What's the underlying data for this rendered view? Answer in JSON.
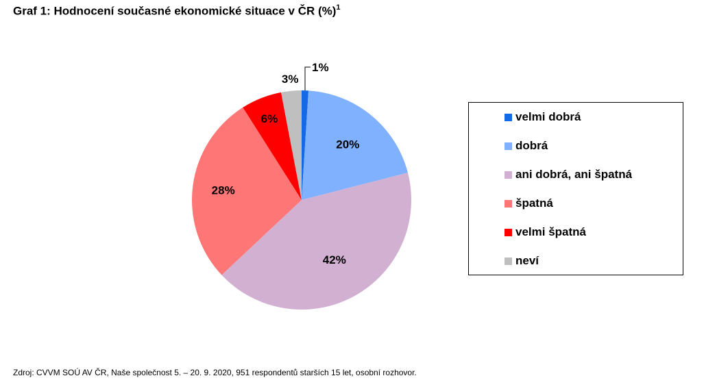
{
  "title": "Graf 1: Hodnocení současné ekonomické situace v ČR (%)",
  "title_footnote": "1",
  "source": "Zdroj: CVVM SOÚ AV ČR, Naše společnost 5. – 20. 9. 2020, 951 respondentů starších 15 let, osobní rozhovor.",
  "chart_data": {
    "type": "pie",
    "title": "Graf 1: Hodnocení současné ekonomické situace v ČR (%)",
    "categories": [
      "velmi dobrá",
      "dobrá",
      "ani dobrá, ani špatná",
      "špatná",
      "velmi špatná",
      "neví"
    ],
    "values": [
      1,
      20,
      42,
      28,
      6,
      3
    ],
    "labels": [
      "1%",
      "20%",
      "42%",
      "28%",
      "6%",
      "3%"
    ],
    "colors": [
      "#1469E6",
      "#80B1FF",
      "#D2B0D2",
      "#FF7676",
      "#FF0000",
      "#BFBFBF"
    ],
    "legend_position": "right",
    "start_angle_deg": 0,
    "direction": "clockwise"
  }
}
